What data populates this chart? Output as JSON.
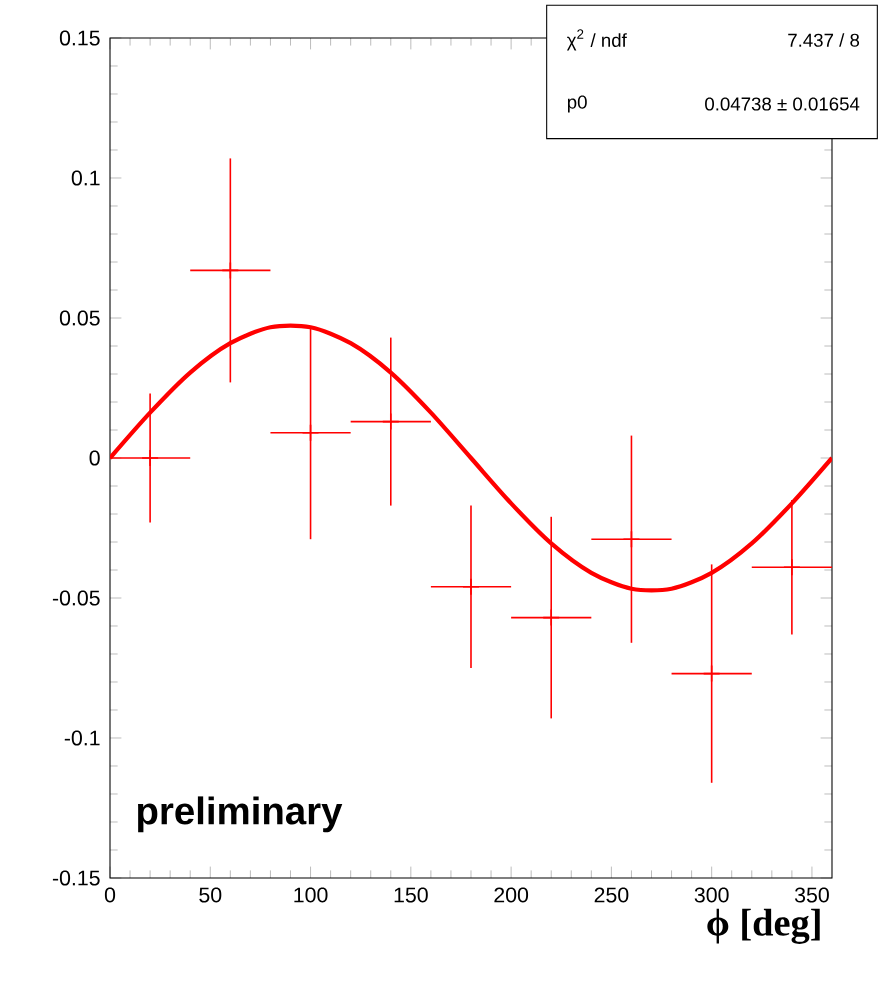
{
  "chart_data": {
    "type": "scatter",
    "xlabel": "ϕ [deg]",
    "xlim": [
      0,
      360
    ],
    "xticks": [
      0,
      50,
      100,
      150,
      200,
      250,
      300,
      350
    ],
    "ylim": [
      -0.15,
      0.15
    ],
    "yticks": [
      -0.15,
      -0.1,
      -0.05,
      0,
      0.05,
      0.1,
      0.15
    ],
    "grid": false,
    "series": [
      {
        "marker": "cross",
        "color": "#ff0000",
        "x": [
          20,
          60,
          100,
          140,
          180,
          220,
          260,
          300,
          340
        ],
        "values": [
          0.0,
          0.067,
          0.009,
          0.013,
          -0.046,
          -0.057,
          -0.029,
          -0.077,
          -0.039
        ],
        "errors": [
          0.023,
          0.04,
          0.038,
          0.03,
          0.029,
          0.036,
          0.037,
          0.039,
          0.024
        ],
        "xerrors": [
          20,
          20,
          20,
          20,
          20,
          20,
          20,
          20,
          20
        ]
      },
      {
        "type": "line",
        "marker": "none",
        "color": "#ff0000",
        "x": [
          0,
          20,
          40,
          60,
          80,
          100,
          120,
          140,
          160,
          180,
          200,
          220,
          240,
          260,
          280,
          300,
          320,
          340,
          360
        ],
        "values": [
          0,
          0.0162,
          0.0305,
          0.041,
          0.0467,
          0.0467,
          0.041,
          0.0305,
          0.0162,
          0,
          -0.0162,
          -0.0305,
          -0.041,
          -0.0467,
          -0.0467,
          -0.041,
          -0.0305,
          -0.0162,
          0
        ]
      }
    ],
    "annotations": [
      "χ$^{2}$ / ndf",
      "7.437 / 8",
      "p0",
      "0.04738 ± 0.01654",
      "preliminary"
    ]
  }
}
